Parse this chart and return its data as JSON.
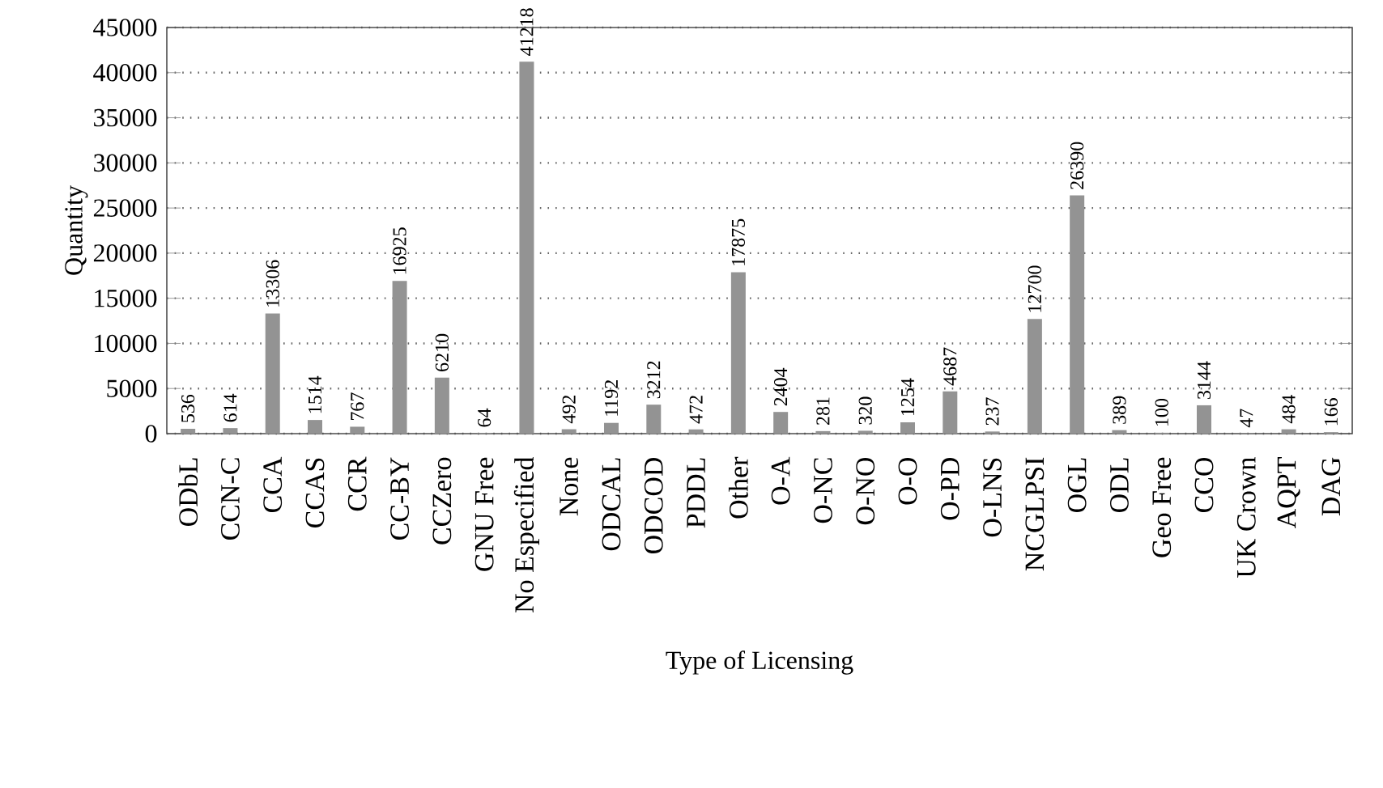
{
  "chart_data": {
    "type": "bar",
    "xlabel": "Type of Licensing",
    "ylabel": "Quantity",
    "categories": [
      "ODbL",
      "CCN-C",
      "CCA",
      "CCAS",
      "CCR",
      "CC-BY",
      "CCZero",
      "GNU Free",
      "No Especified",
      "None",
      "ODCAL",
      "ODCOD",
      "PDDL",
      "Other",
      "O-A",
      "O-NC",
      "O-NO",
      "O-O",
      "O-PD",
      "O-LNS",
      "NCGLPSI",
      "OGL",
      "ODL",
      "Geo Free",
      "CCO",
      "UK Crown",
      "AQPT",
      "DAG"
    ],
    "values": [
      536,
      614,
      13306,
      1514,
      767,
      16925,
      6210,
      64,
      41218,
      492,
      1192,
      3212,
      472,
      17875,
      2404,
      281,
      320,
      1254,
      4687,
      237,
      12700,
      26390,
      389,
      100,
      3144,
      47,
      484,
      166
    ],
    "color": "#939393",
    "ylim": [
      0,
      45000
    ],
    "yticks": [
      0,
      5000,
      10000,
      15000,
      20000,
      25000,
      30000,
      35000,
      40000,
      45000
    ],
    "grid": "y",
    "data_labels": true
  }
}
